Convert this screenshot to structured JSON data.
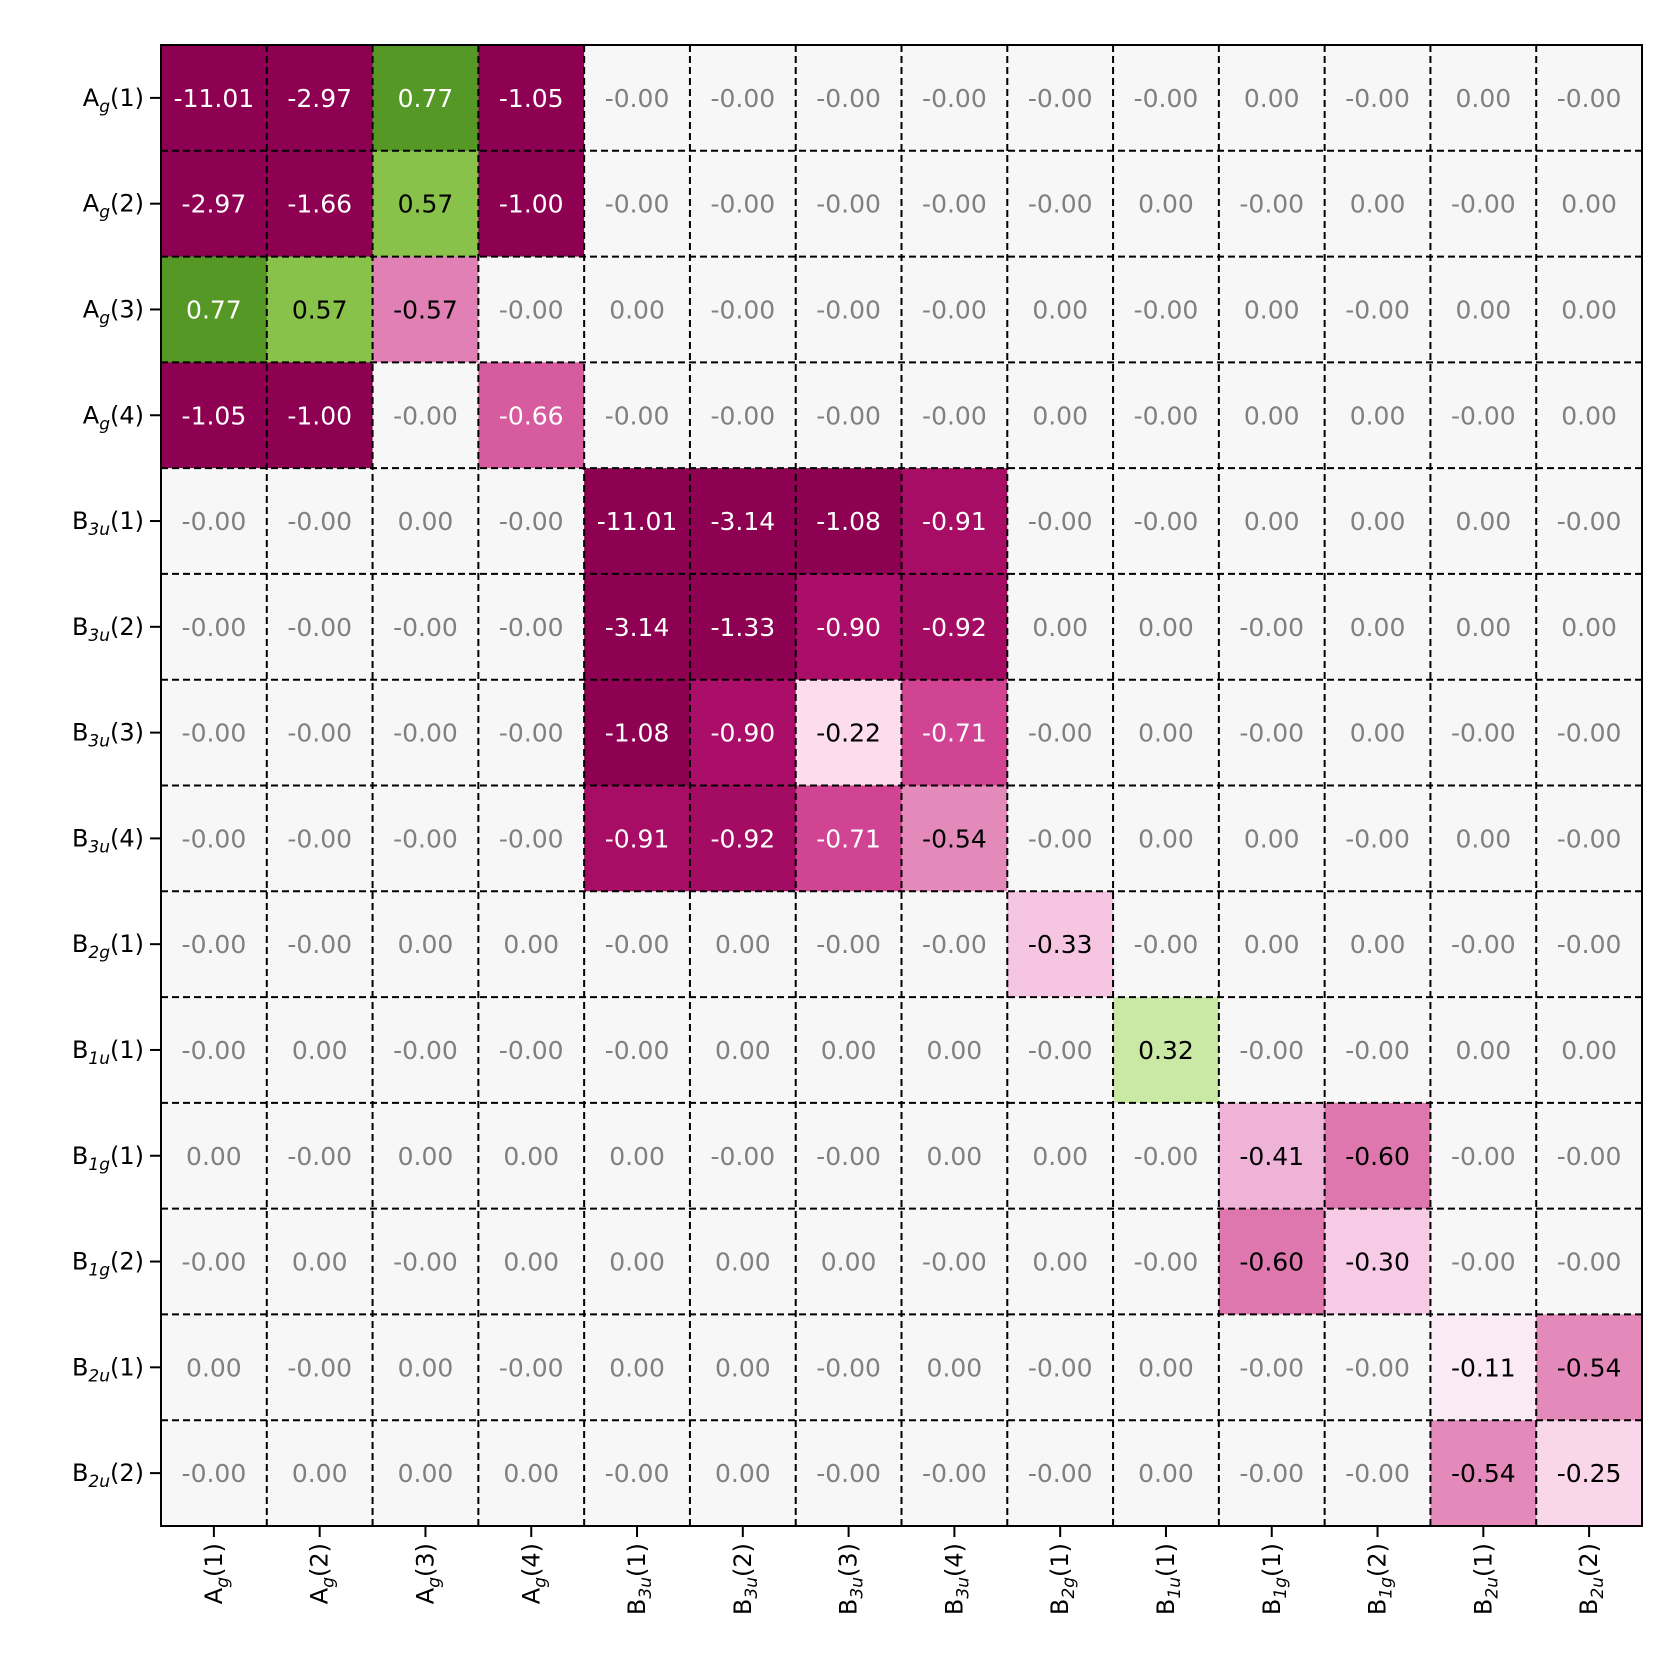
{
  "chart_data": {
    "type": "heatmap",
    "colormap": "PiYG",
    "color_range": [
      -1,
      1
    ],
    "grid_lines": "dashed black",
    "row_labels": [
      {
        "base": "A",
        "sub": "g",
        "idx": "(1)"
      },
      {
        "base": "A",
        "sub": "g",
        "idx": "(2)"
      },
      {
        "base": "A",
        "sub": "g",
        "idx": "(3)"
      },
      {
        "base": "A",
        "sub": "g",
        "idx": "(4)"
      },
      {
        "base": "B",
        "sub": "3u",
        "idx": "(1)"
      },
      {
        "base": "B",
        "sub": "3u",
        "idx": "(2)"
      },
      {
        "base": "B",
        "sub": "3u",
        "idx": "(3)"
      },
      {
        "base": "B",
        "sub": "3u",
        "idx": "(4)"
      },
      {
        "base": "B",
        "sub": "2g",
        "idx": "(1)"
      },
      {
        "base": "B",
        "sub": "1u",
        "idx": "(1)"
      },
      {
        "base": "B",
        "sub": "1g",
        "idx": "(1)"
      },
      {
        "base": "B",
        "sub": "1g",
        "idx": "(2)"
      },
      {
        "base": "B",
        "sub": "2u",
        "idx": "(1)"
      },
      {
        "base": "B",
        "sub": "2u",
        "idx": "(2)"
      }
    ],
    "col_labels": [
      {
        "base": "A",
        "sub": "g",
        "idx": "(1)"
      },
      {
        "base": "A",
        "sub": "g",
        "idx": "(2)"
      },
      {
        "base": "A",
        "sub": "g",
        "idx": "(3)"
      },
      {
        "base": "A",
        "sub": "g",
        "idx": "(4)"
      },
      {
        "base": "B",
        "sub": "3u",
        "idx": "(1)"
      },
      {
        "base": "B",
        "sub": "3u",
        "idx": "(2)"
      },
      {
        "base": "B",
        "sub": "3u",
        "idx": "(3)"
      },
      {
        "base": "B",
        "sub": "3u",
        "idx": "(4)"
      },
      {
        "base": "B",
        "sub": "2g",
        "idx": "(1)"
      },
      {
        "base": "B",
        "sub": "1u",
        "idx": "(1)"
      },
      {
        "base": "B",
        "sub": "1g",
        "idx": "(1)"
      },
      {
        "base": "B",
        "sub": "1g",
        "idx": "(2)"
      },
      {
        "base": "B",
        "sub": "2u",
        "idx": "(1)"
      },
      {
        "base": "B",
        "sub": "2u",
        "idx": "(2)"
      }
    ],
    "cells": [
      [
        "-11.01",
        "-2.97",
        "0.77",
        "-1.05",
        "-0.00",
        "-0.00",
        "-0.00",
        "-0.00",
        "-0.00",
        "-0.00",
        "0.00",
        "-0.00",
        "0.00",
        "-0.00"
      ],
      [
        "-2.97",
        "-1.66",
        "0.57",
        "-1.00",
        "-0.00",
        "-0.00",
        "-0.00",
        "-0.00",
        "-0.00",
        "0.00",
        "-0.00",
        "0.00",
        "-0.00",
        "0.00"
      ],
      [
        "0.77",
        "0.57",
        "-0.57",
        "-0.00",
        "0.00",
        "-0.00",
        "-0.00",
        "-0.00",
        "0.00",
        "-0.00",
        "0.00",
        "-0.00",
        "0.00",
        "0.00"
      ],
      [
        "-1.05",
        "-1.00",
        "-0.00",
        "-0.66",
        "-0.00",
        "-0.00",
        "-0.00",
        "-0.00",
        "0.00",
        "-0.00",
        "0.00",
        "0.00",
        "-0.00",
        "0.00"
      ],
      [
        "-0.00",
        "-0.00",
        "0.00",
        "-0.00",
        "-11.01",
        "-3.14",
        "-1.08",
        "-0.91",
        "-0.00",
        "-0.00",
        "0.00",
        "0.00",
        "0.00",
        "-0.00"
      ],
      [
        "-0.00",
        "-0.00",
        "-0.00",
        "-0.00",
        "-3.14",
        "-1.33",
        "-0.90",
        "-0.92",
        "0.00",
        "0.00",
        "-0.00",
        "0.00",
        "0.00",
        "0.00"
      ],
      [
        "-0.00",
        "-0.00",
        "-0.00",
        "-0.00",
        "-1.08",
        "-0.90",
        "-0.22",
        "-0.71",
        "-0.00",
        "0.00",
        "-0.00",
        "0.00",
        "-0.00",
        "-0.00"
      ],
      [
        "-0.00",
        "-0.00",
        "-0.00",
        "-0.00",
        "-0.91",
        "-0.92",
        "-0.71",
        "-0.54",
        "-0.00",
        "0.00",
        "0.00",
        "-0.00",
        "0.00",
        "-0.00"
      ],
      [
        "-0.00",
        "-0.00",
        "0.00",
        "0.00",
        "-0.00",
        "0.00",
        "-0.00",
        "-0.00",
        "-0.33",
        "-0.00",
        "0.00",
        "0.00",
        "-0.00",
        "-0.00"
      ],
      [
        "-0.00",
        "0.00",
        "-0.00",
        "-0.00",
        "-0.00",
        "0.00",
        "0.00",
        "0.00",
        "-0.00",
        "0.32",
        "-0.00",
        "-0.00",
        "0.00",
        "0.00"
      ],
      [
        "0.00",
        "-0.00",
        "0.00",
        "0.00",
        "0.00",
        "-0.00",
        "-0.00",
        "0.00",
        "0.00",
        "-0.00",
        "-0.41",
        "-0.60",
        "-0.00",
        "-0.00"
      ],
      [
        "-0.00",
        "0.00",
        "-0.00",
        "0.00",
        "0.00",
        "0.00",
        "0.00",
        "-0.00",
        "0.00",
        "-0.00",
        "-0.60",
        "-0.30",
        "-0.00",
        "-0.00"
      ],
      [
        "0.00",
        "-0.00",
        "0.00",
        "-0.00",
        "0.00",
        "0.00",
        "-0.00",
        "0.00",
        "-0.00",
        "0.00",
        "-0.00",
        "-0.00",
        "-0.11",
        "-0.54"
      ],
      [
        "-0.00",
        "0.00",
        "0.00",
        "0.00",
        "-0.00",
        "0.00",
        "-0.00",
        "-0.00",
        "-0.00",
        "0.00",
        "-0.00",
        "-0.00",
        "-0.54",
        "-0.25"
      ]
    ]
  }
}
